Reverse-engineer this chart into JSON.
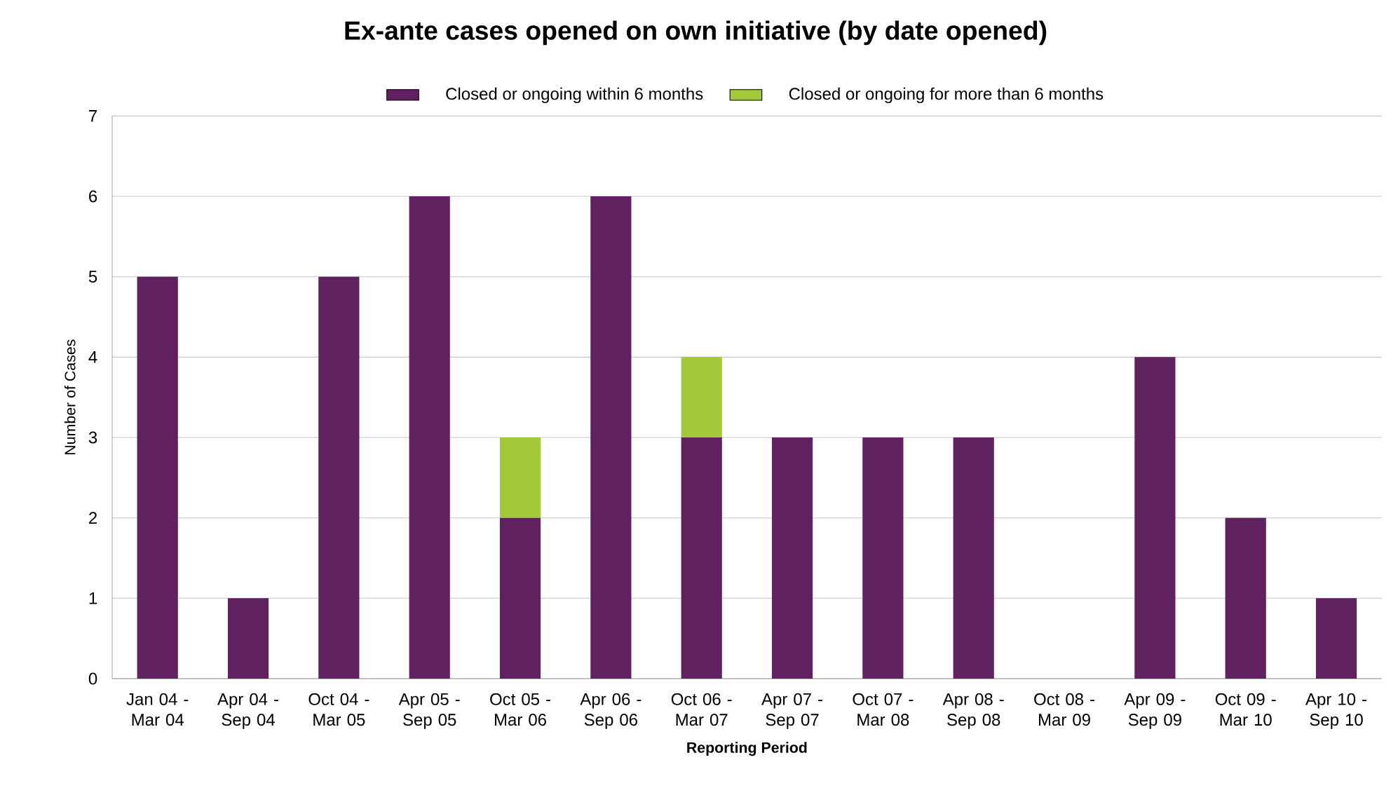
{
  "chart_data": {
    "type": "bar",
    "title": "Ex-ante cases opened on own initiative (by date opened)",
    "xlabel": "Reporting Period",
    "ylabel": "Number of Cases",
    "categories": [
      "Jan 04 - Mar 04",
      "Apr 04 - Sep 04",
      "Oct 04 - Mar 05",
      "Apr 05 - Sep 05",
      "Oct 05 - Mar 06",
      "Apr 06 - Sep 06",
      "Oct 06 - Mar 07",
      "Apr 07 - Sep 07",
      "Oct 07 - Mar 08",
      "Apr 08 - Sep 08",
      "Oct 08 - Mar 09",
      "Apr 09 - Sep 09",
      "Oct 09 - Mar 10",
      "Apr 10 - Sep 10"
    ],
    "stacked": true,
    "series": [
      {
        "name": "Closed or ongoing within 6 months",
        "color": "#5f2160",
        "values": [
          5,
          1,
          5,
          6,
          2,
          6,
          3,
          3,
          3,
          3,
          0,
          4,
          2,
          1
        ]
      },
      {
        "name": "Closed or ongoing for more than 6 months",
        "color": "#a3c93a",
        "values": [
          null,
          null,
          null,
          null,
          1,
          null,
          1,
          null,
          null,
          null,
          null,
          null,
          null,
          null
        ]
      }
    ],
    "ylim": [
      0,
      7
    ],
    "yticks": [
      0,
      1,
      2,
      3,
      4,
      5,
      6,
      7
    ],
    "grid": "y",
    "legend": "top"
  }
}
